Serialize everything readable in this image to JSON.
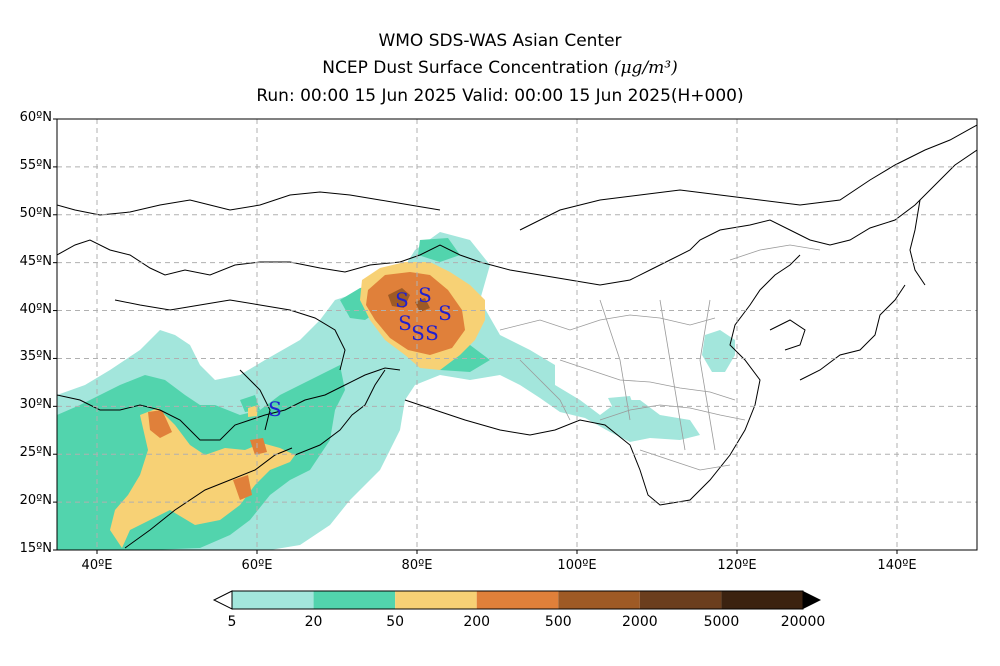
{
  "title_line1": "WMO SDS-WAS Asian Center",
  "title_line2": "NCEP Dust Surface Concentration",
  "title_unit": "(μg/m³)",
  "title_line3": "Run: 00:00 15 Jun 2025     Valid: 00:00 15 Jun 2025(H+000)",
  "map": {
    "lon_range": [
      35,
      150
    ],
    "lat_range": [
      15,
      60
    ],
    "lat_ticks": [
      "15ºN",
      "20ºN",
      "25ºN",
      "30ºN",
      "35ºN",
      "40ºN",
      "45ºN",
      "50ºN",
      "55ºN",
      "60ºN"
    ],
    "lon_ticks": [
      "40ºE",
      "60ºE",
      "80ºE",
      "100ºE",
      "120ºE",
      "140ºE"
    ],
    "grid": true
  },
  "colorbar": {
    "labels": [
      "5",
      "20",
      "50",
      "200",
      "500",
      "2000",
      "5000",
      "20000"
    ],
    "colors": [
      "#a3e6dc",
      "#52d4ad",
      "#f7d175",
      "#e0803a",
      "#9e5a25",
      "#6b3e1e",
      "#3b2210"
    ]
  },
  "dust_symbol": "S"
}
